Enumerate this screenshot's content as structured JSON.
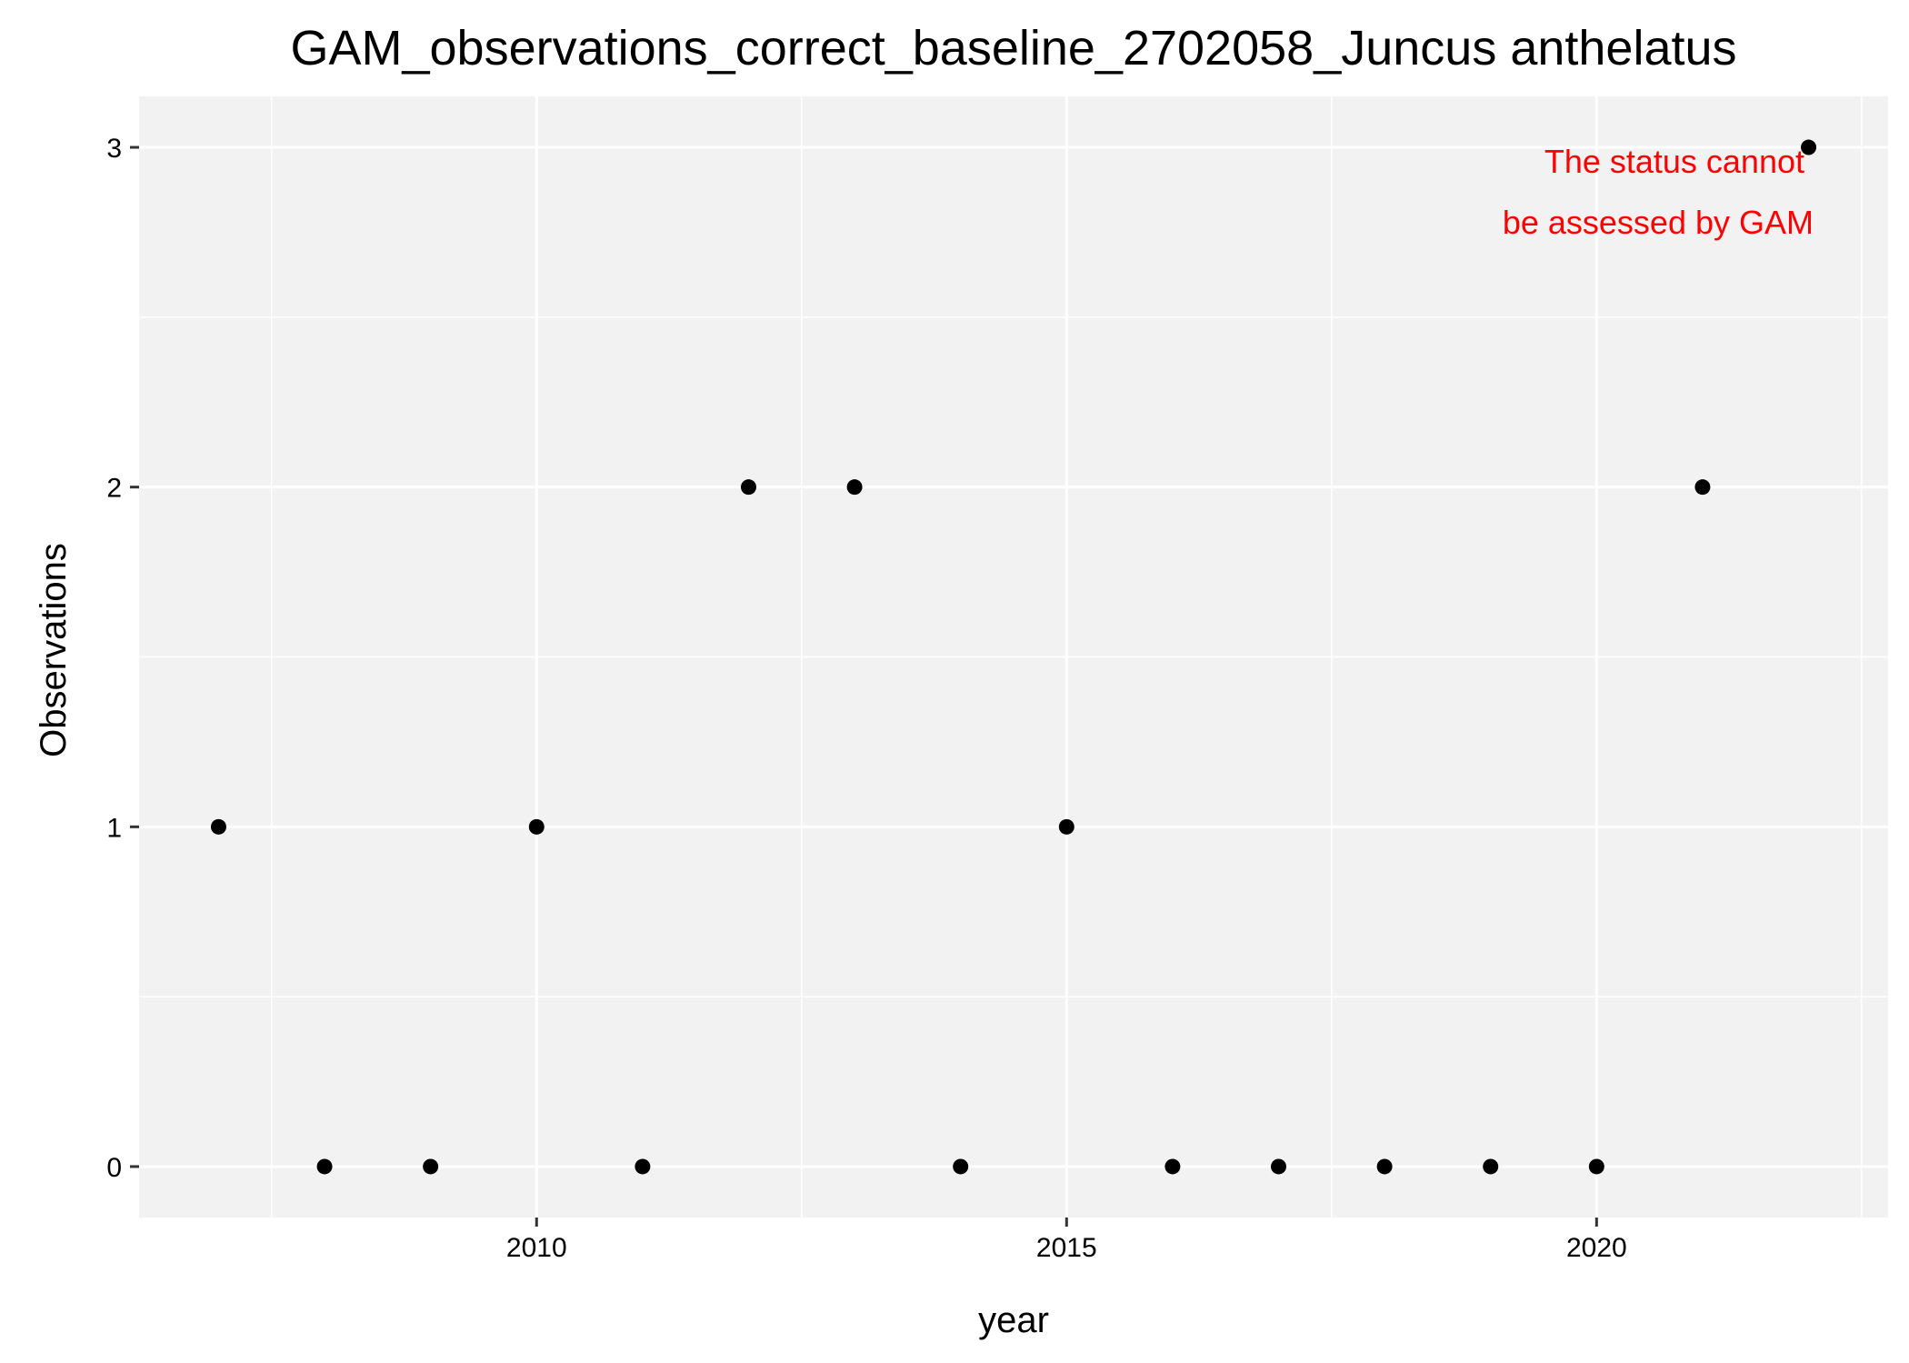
{
  "chart_data": {
    "type": "scatter",
    "title": "GAM_observations_correct_baseline_2702058_Juncus anthelatus",
    "xlabel": "year",
    "ylabel": "Observations",
    "x": [
      2007,
      2008,
      2009,
      2010,
      2011,
      2012,
      2013,
      2014,
      2015,
      2016,
      2017,
      2018,
      2019,
      2020,
      2021,
      2022
    ],
    "y": [
      1,
      0,
      0,
      1,
      0,
      2,
      2,
      0,
      1,
      0,
      0,
      0,
      0,
      0,
      2,
      3
    ],
    "xlim": [
      2006.25,
      2022.75
    ],
    "ylim": [
      -0.15,
      3.15
    ],
    "x_ticks": [
      2010,
      2015,
      2020
    ],
    "x_minor_ticks": [
      2007.5,
      2012.5,
      2017.5,
      2022.5
    ],
    "y_ticks": [
      0,
      1,
      2,
      3
    ],
    "y_minor_ticks": [
      0.5,
      1.5,
      2.5
    ],
    "grid": true,
    "panel_background": "#f2f2f2",
    "grid_color": "#ffffff",
    "point_color": "#000000",
    "annotation": {
      "lines": [
        "The status cannot",
        "be assessed by GAM"
      ],
      "color": "#ff0000"
    }
  }
}
